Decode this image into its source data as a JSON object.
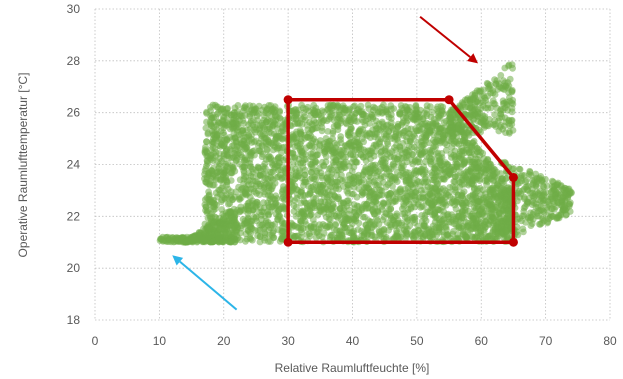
{
  "chart_data": {
    "type": "scatter",
    "xlabel": "Relative Raumluftfeuchte [%]",
    "ylabel": "Operative Raumlufttemperatur [°C]",
    "xlim": [
      0,
      80
    ],
    "ylim": [
      18,
      30
    ],
    "xticks": [
      0,
      10,
      20,
      30,
      40,
      50,
      60,
      70,
      80
    ],
    "yticks": [
      18,
      20,
      22,
      24,
      26,
      28,
      30
    ],
    "grid": "dotted, both axes",
    "colors": {
      "points": "#70ad47",
      "polygon": "#c00000",
      "arrow_top": "#c00000",
      "arrow_bottom": "#2cb5e8"
    },
    "series": [
      {
        "approximate_regions": [
          {
            "x_range": [
              10,
              22
            ],
            "y_range": [
              21.0,
              21.2
            ]
          },
          {
            "x_range": [
              14,
              22
            ],
            "y_range": [
              21.0,
              22.5
            ]
          },
          {
            "x_range": [
              17,
              55
            ],
            "y_range": [
              21.0,
              26.3
            ]
          },
          {
            "x_range": [
              55,
              65
            ],
            "y_range": [
              21.0,
              25.5
            ]
          },
          {
            "x_range": [
              55,
              65
            ],
            "y_range": [
              25.5,
              27.9
            ]
          },
          {
            "x_range": [
              63,
              74
            ],
            "y_range": [
              21.0,
              24.5
            ]
          }
        ]
      }
    ],
    "comfort_polygon": [
      [
        30,
        21.0
      ],
      [
        30,
        26.5
      ],
      [
        55,
        26.5
      ],
      [
        65,
        23.5
      ],
      [
        65,
        21.0
      ]
    ],
    "annotations": [
      {
        "type": "arrow",
        "color": "#c00000",
        "from": [
          50.5,
          29.7
        ],
        "to": [
          59.5,
          27.9
        ]
      },
      {
        "type": "arrow",
        "color": "#2cb5e8",
        "from": [
          22,
          18.4
        ],
        "to": [
          12,
          20.5
        ]
      }
    ]
  }
}
